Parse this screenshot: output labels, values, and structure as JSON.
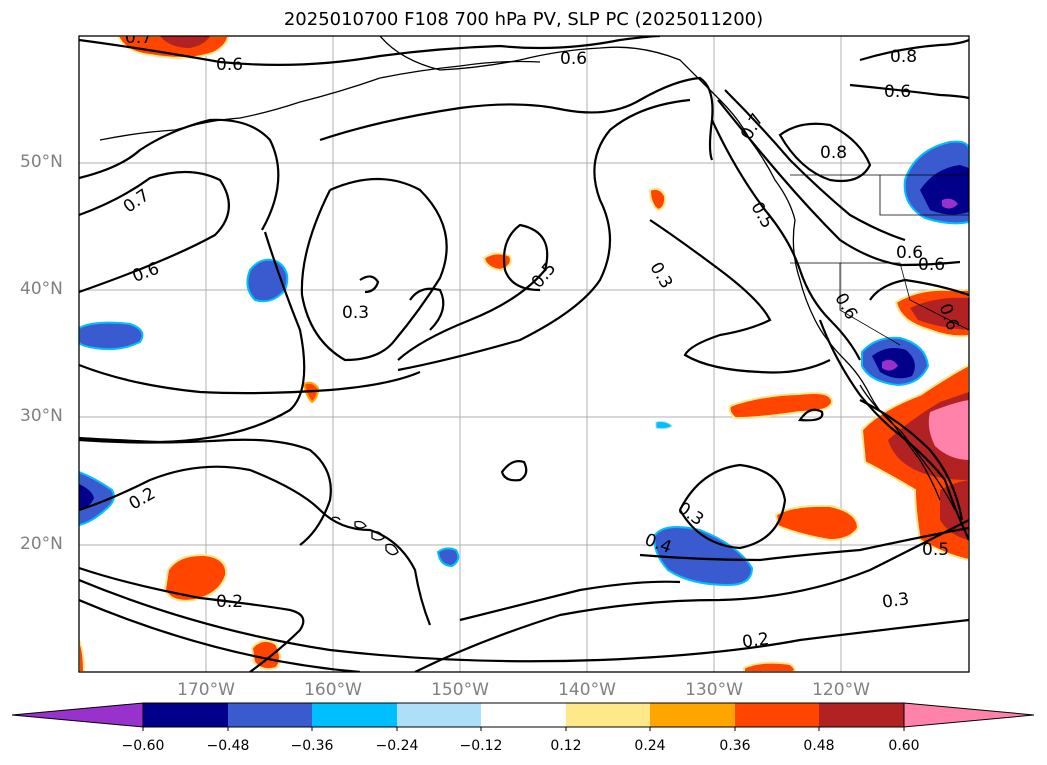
{
  "title": "2025010700 F108 700 hPa PV, SLP PC (2025011200)",
  "latitude_labels": [
    "50°N",
    "40°N",
    "30°N",
    "20°N"
  ],
  "longitude_labels": [
    "170°W",
    "160°W",
    "150°W",
    "140°W",
    "130°W",
    "120°W"
  ],
  "contour_labels": [
    "0.7",
    "0.6",
    "0.6",
    "0.8",
    "0.6",
    "0.7",
    "0.8",
    "0.7",
    "0.6",
    "0.5",
    "0.5",
    "0.3",
    "0.3",
    "0.6",
    "0.6",
    "0.6",
    "0.6",
    "0.2",
    "0.3",
    "0.4",
    "0.5",
    "0.2",
    "0.3",
    "0.2"
  ],
  "colorbar": {
    "tick_labels": [
      "−0.60",
      "−0.48",
      "−0.36",
      "−0.24",
      "−0.12",
      "0.12",
      "0.24",
      "0.36",
      "0.48",
      "0.60"
    ],
    "colors": [
      "#9932CC",
      "#00008B",
      "#3A5BD0",
      "#00BFFF",
      "#ADDFF8",
      "#FFFFFF",
      "#FFE88A",
      "#FFA500",
      "#FF4500",
      "#B22222",
      "#FF82AB"
    ]
  },
  "colors": {
    "contour": "#000000",
    "coast": "#000000",
    "grid": "#b0b0b0",
    "axis_label": "#808080"
  }
}
